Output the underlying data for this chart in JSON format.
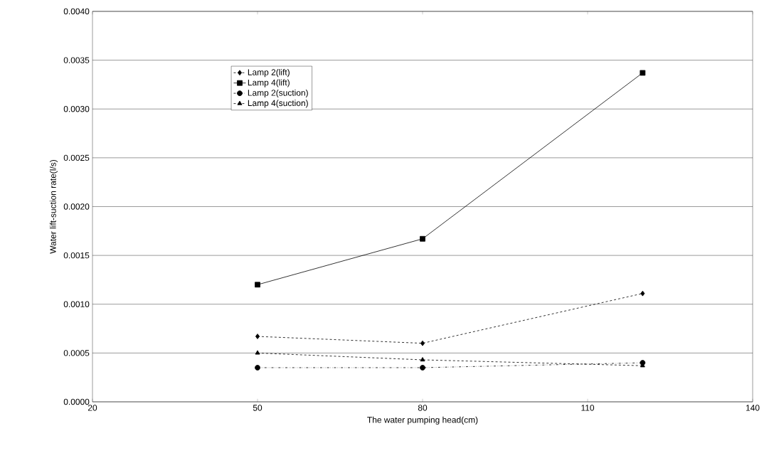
{
  "chart_data": {
    "type": "line",
    "xlabel": "The water pumping head(cm)",
    "ylabel": "Water lift-suction rate(l/s)",
    "x": [
      50,
      80,
      120
    ],
    "series": [
      {
        "name": "Lamp 2(lift)",
        "color": "#000000",
        "values": [
          0.00067,
          0.0006,
          0.00111
        ],
        "marker": "diamond",
        "line_style": "dashed"
      },
      {
        "name": "Lamp 4(lift)",
        "color": "#000000",
        "values": [
          0.0012,
          0.00167,
          0.00337
        ],
        "marker": "square",
        "line_style": "solid"
      },
      {
        "name": "Lamp 2(suction)",
        "color": "#000000",
        "values": [
          0.00035,
          0.00035,
          0.0004
        ],
        "marker": "circle",
        "line_style": "dotted"
      },
      {
        "name": "Lamp 4(suction)",
        "color": "#000000",
        "values": [
          0.0005,
          0.00043,
          0.00037
        ],
        "marker": "triangle",
        "line_style": "dashed"
      }
    ],
    "xlim": [
      20,
      140
    ],
    "xticks": [
      20,
      50,
      80,
      110,
      140
    ],
    "ylim": [
      0,
      0.004
    ],
    "yticks": [
      {
        "value": 0,
        "label": "0.0000"
      },
      {
        "value": 0.0005,
        "label": "0.0005"
      },
      {
        "value": 0.001,
        "label": "0.0010"
      },
      {
        "value": 0.0015,
        "label": "0.0015"
      },
      {
        "value": 0.002,
        "label": "0.0020"
      },
      {
        "value": 0.0025,
        "label": "0.0025"
      },
      {
        "value": 0.003,
        "label": "0.0030"
      },
      {
        "value": 0.0035,
        "label": "0.0035"
      },
      {
        "value": 0.004,
        "label": "0.0040"
      }
    ],
    "grid": "y",
    "legend": "top left"
  }
}
